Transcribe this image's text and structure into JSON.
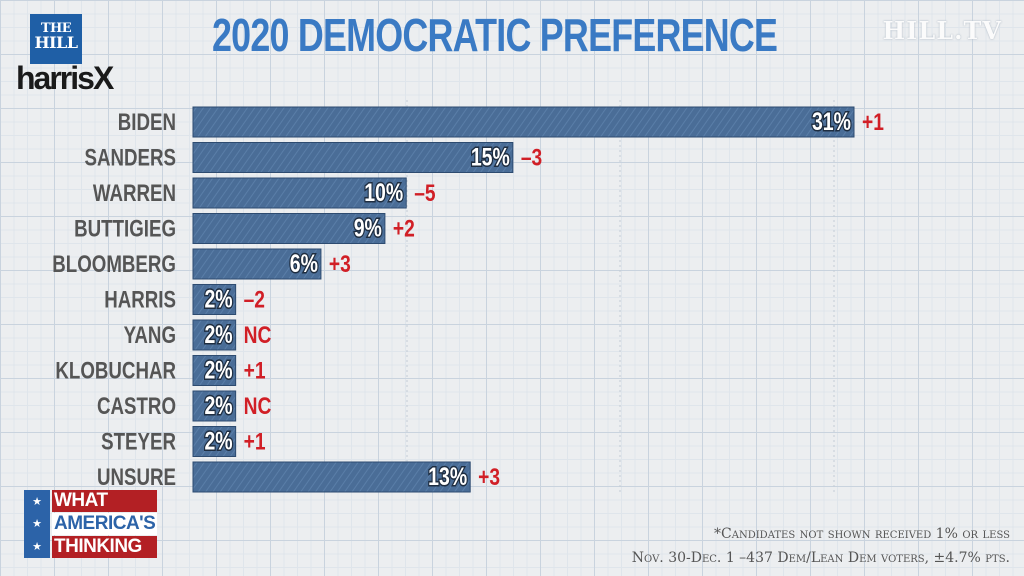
{
  "title": "2020 DEMOCRATIC PREFERENCE",
  "logos": {
    "hill_line1": "THE",
    "hill_line2": "HILL",
    "harrisx": "harrisX",
    "hilltv": "HILL.TV"
  },
  "branding": {
    "line1": "WHAT",
    "line2": "AMERICA'S",
    "line3": "THINKING"
  },
  "footnotes": {
    "note1": "*Candidates not shown received 1% or less",
    "note2": "Nov. 30-Dec. 1 –437 Dem/Lean Dem voters, ±4.7% pts."
  },
  "colors": {
    "bar": "#4a6d97",
    "bar_edge": "#2d4b70",
    "change": "#d11f26",
    "label": "#555555",
    "title": "#3a7ac4"
  },
  "chart_data": {
    "type": "bar",
    "orientation": "horizontal",
    "categories": [
      "BIDEN",
      "SANDERS",
      "WARREN",
      "BUTTIGIEG",
      "BLOOMBERG",
      "HARRIS",
      "YANG",
      "KLOBUCHAR",
      "CASTRO",
      "STEYER",
      "UNSURE"
    ],
    "values": [
      31,
      15,
      10,
      9,
      6,
      2,
      2,
      2,
      2,
      2,
      13
    ],
    "value_labels": [
      "31%",
      "15%",
      "10%",
      "9%",
      "6%",
      "2%",
      "2%",
      "2%",
      "2%",
      "2%",
      "13%"
    ],
    "changes": [
      "+1",
      "–3",
      "–5",
      "+2",
      "+3",
      "–2",
      "NC",
      "+1",
      "NC",
      "+1",
      "+3"
    ],
    "xlim": [
      0,
      31
    ],
    "grid": true
  }
}
